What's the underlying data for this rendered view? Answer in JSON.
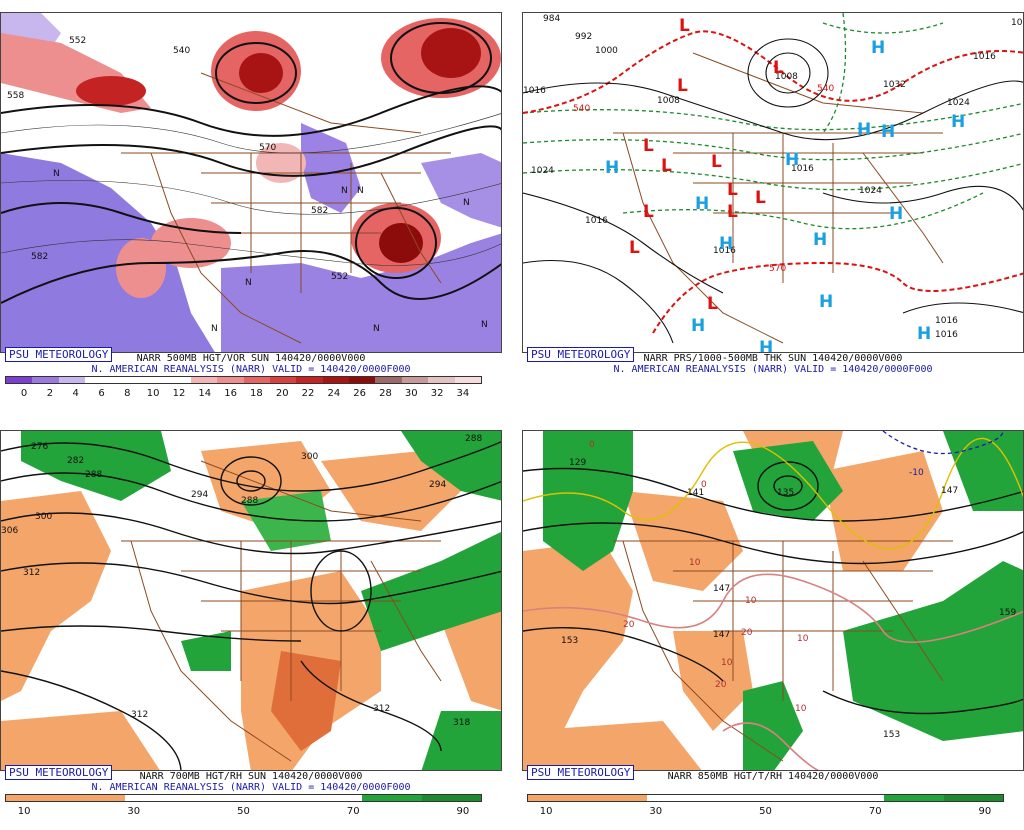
{
  "panels": [
    {
      "badge": "PSU METEOROLOGY",
      "line1": "NARR 500MB HGT/VOR SUN 140420/0000V000",
      "line2": "N. AMERICAN REANALYSIS (NARR) VALID = 140420/0000F000",
      "colorbar": {
        "colors": [
          "#7a3fd0",
          "#9b7ae0",
          "#c8b6ee",
          "#ffffff",
          "#ffffff",
          "#ffffff",
          "#ffffff",
          "#f3b6b6",
          "#ee8f8f",
          "#e56565",
          "#d94141",
          "#c42323",
          "#a81414",
          "#8c0b0b",
          "#9c6a6a",
          "#c69a9a",
          "#e5c3c3",
          "#f6dcdc"
        ],
        "ticks": [
          "0",
          "2",
          "4",
          "6",
          "8",
          "10",
          "12",
          "14",
          "16",
          "18",
          "20",
          "22",
          "24",
          "26",
          "28",
          "30",
          "32",
          "34"
        ]
      },
      "contour_labels": [
        "552",
        "558",
        "540",
        "570",
        "582",
        "552",
        "582"
      ],
      "map_letters": [
        "N",
        "N",
        "N",
        "N",
        "N",
        "N",
        "N",
        "N"
      ]
    },
    {
      "badge": "PSU METEOROLOGY",
      "line1": "NARR PRS/1000-500MB THK SUN 140420/0000V000",
      "line2": "N. AMERICAN REANALYSIS (NARR) VALID = 140420/0000F000",
      "contour_labels": [
        "984",
        "992",
        "1000",
        "1008",
        "1016",
        "1024",
        "1008",
        "1032",
        "1016",
        "1024",
        "1016",
        "1024",
        "1016",
        "1016",
        "1016",
        "1016",
        "1016"
      ],
      "thickness_labels": [
        "540",
        "540",
        "570"
      ],
      "highs": [
        "H",
        "H",
        "H",
        "H",
        "H",
        "H",
        "H",
        "H",
        "H",
        "H",
        "H",
        "H",
        "H",
        "H"
      ],
      "lows": [
        "L",
        "L",
        "L",
        "L",
        "L",
        "L",
        "L",
        "L",
        "L",
        "L",
        "L",
        "L"
      ]
    },
    {
      "badge": "PSU METEOROLOGY",
      "line1": "NARR 700MB HGT/RH SUN 140420/0000V000",
      "line2": "N. AMERICAN REANALYSIS (NARR) VALID = 140420/0000F000",
      "colorbar": {
        "colors": [
          "#f3a56a",
          "#f3a56a",
          "#ffffff",
          "#ffffff",
          "#ffffff",
          "#ffffff",
          "#22a43a",
          "#1e8a2e"
        ],
        "ticks": [
          "10",
          "30",
          "50",
          "70",
          "90"
        ]
      },
      "contour_labels": [
        "276",
        "282",
        "288",
        "300",
        "294",
        "288",
        "300",
        "294",
        "306",
        "312",
        "318",
        "312",
        "312",
        "288"
      ]
    },
    {
      "badge": "PSU METEOROLOGY",
      "line1": "NARR 850MB HGT/T/RH 140420/0000V000",
      "colorbar": {
        "colors": [
          "#f3a56a",
          "#f3a56a",
          "#ffffff",
          "#ffffff",
          "#ffffff",
          "#ffffff",
          "#22a43a",
          "#1e8a2e"
        ],
        "ticks": [
          "10",
          "30",
          "50",
          "70",
          "90"
        ]
      },
      "contour_labels": [
        "129",
        "141",
        "135",
        "147",
        "147",
        "153",
        "153",
        "159",
        "147"
      ],
      "temp_labels": [
        "0",
        "0",
        "10",
        "10",
        "20",
        "10",
        "20",
        "10",
        "20",
        "-10",
        "10"
      ]
    }
  ]
}
